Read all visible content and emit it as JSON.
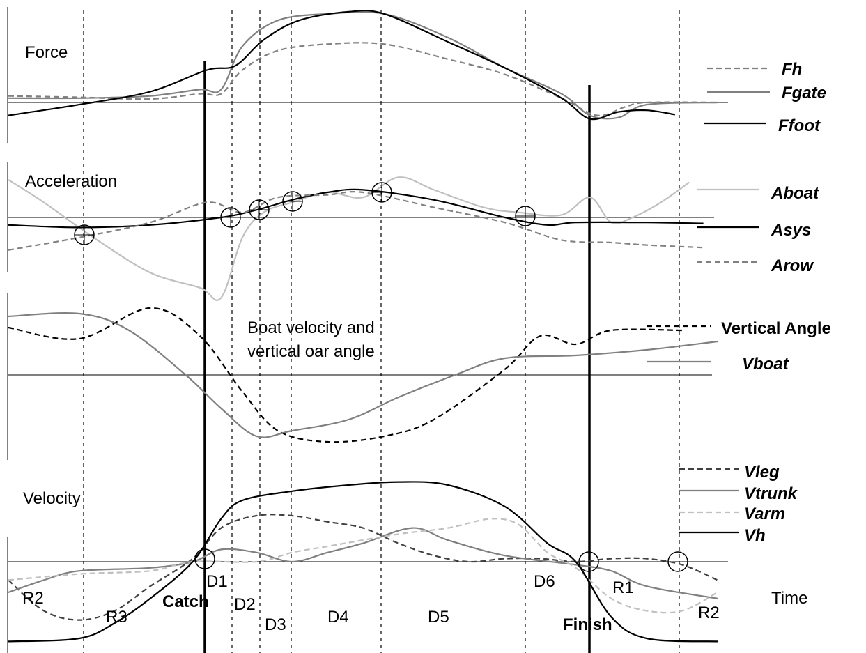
{
  "chart_data": {
    "type": "line",
    "panels": [
      {
        "id": "force",
        "title": "Force",
        "legend": [
          "Fh",
          "Fgate",
          "Ffoot"
        ],
        "series": [
          {
            "name": "Fh",
            "style": "dashed",
            "color": "#808080",
            "values": [
              [
                0,
                0.15
              ],
              [
                0.1,
                0.12
              ],
              [
                0.2,
                0.08
              ],
              [
                0.27,
                0.2
              ],
              [
                0.3,
                0.2
              ],
              [
                0.33,
                0.75
              ],
              [
                0.38,
                1.2
              ],
              [
                0.45,
                1.35
              ],
              [
                0.53,
                1.35
              ],
              [
                0.62,
                1.0
              ],
              [
                0.7,
                0.65
              ],
              [
                0.78,
                0.1
              ],
              [
                0.83,
                -0.3
              ],
              [
                0.87,
                -0.1
              ],
              [
                0.9,
                0.0
              ],
              [
                1.0,
                0.0
              ]
            ]
          },
          {
            "name": "Fgate",
            "style": "solid",
            "color": "#808080",
            "values": [
              [
                0,
                0.1
              ],
              [
                0.1,
                0.1
              ],
              [
                0.2,
                0.15
              ],
              [
                0.27,
                0.3
              ],
              [
                0.3,
                0.3
              ],
              [
                0.33,
                1.3
              ],
              [
                0.38,
                1.9
              ],
              [
                0.45,
                2.05
              ],
              [
                0.53,
                2.05
              ],
              [
                0.62,
                1.5
              ],
              [
                0.7,
                0.8
              ],
              [
                0.78,
                0.2
              ],
              [
                0.82,
                -0.3
              ],
              [
                0.86,
                -0.35
              ],
              [
                0.9,
                -0.05
              ],
              [
                1.0,
                0.0
              ]
            ]
          },
          {
            "name": "Ffoot",
            "style": "solid",
            "color": "#000000",
            "values": [
              [
                0,
                -0.3
              ],
              [
                0.1,
                -0.05
              ],
              [
                0.2,
                0.25
              ],
              [
                0.28,
                0.75
              ],
              [
                0.32,
                0.85
              ],
              [
                0.36,
                1.45
              ],
              [
                0.41,
                1.9
              ],
              [
                0.48,
                2.1
              ],
              [
                0.53,
                2.05
              ],
              [
                0.62,
                1.4
              ],
              [
                0.7,
                0.8
              ],
              [
                0.78,
                0.1
              ],
              [
                0.82,
                -0.38
              ],
              [
                0.86,
                -0.22
              ],
              [
                0.9,
                -0.18
              ],
              [
                0.94,
                -0.28
              ]
            ]
          }
        ]
      },
      {
        "id": "acceleration",
        "title": "Acceleration",
        "legend": [
          "Aboat",
          "Asys",
          "Arow"
        ],
        "series": [
          {
            "name": "Aboat",
            "style": "solid",
            "color": "#c0c0c0",
            "values": [
              [
                0,
                0.75
              ],
              [
                0.05,
                0.3
              ],
              [
                0.12,
                -0.4
              ],
              [
                0.2,
                -1.1
              ],
              [
                0.27,
                -1.4
              ],
              [
                0.3,
                -1.6
              ],
              [
                0.33,
                -0.4
              ],
              [
                0.36,
                0.1
              ],
              [
                0.4,
                0.3
              ],
              [
                0.45,
                0.5
              ],
              [
                0.5,
                0.4
              ],
              [
                0.55,
                0.8
              ],
              [
                0.6,
                0.55
              ],
              [
                0.67,
                0.2
              ],
              [
                0.72,
                0.1
              ],
              [
                0.78,
                0.05
              ],
              [
                0.82,
                0.4
              ],
              [
                0.85,
                -0.1
              ],
              [
                0.88,
                0.0
              ],
              [
                0.92,
                0.3
              ],
              [
                0.96,
                0.7
              ]
            ]
          },
          {
            "name": "Asys",
            "style": "solid",
            "color": "#000000",
            "values": [
              [
                0,
                -0.15
              ],
              [
                0.1,
                -0.2
              ],
              [
                0.2,
                -0.15
              ],
              [
                0.3,
                0.0
              ],
              [
                0.35,
                0.15
              ],
              [
                0.4,
                0.35
              ],
              [
                0.45,
                0.5
              ],
              [
                0.5,
                0.55
              ],
              [
                0.6,
                0.35
              ],
              [
                0.7,
                0.0
              ],
              [
                0.76,
                -0.15
              ],
              [
                0.8,
                -0.1
              ],
              [
                0.9,
                -0.1
              ],
              [
                0.98,
                -0.12
              ]
            ]
          },
          {
            "name": "Arow",
            "style": "dashed",
            "color": "#808080",
            "values": [
              [
                0,
                -0.65
              ],
              [
                0.1,
                -0.4
              ],
              [
                0.2,
                -0.1
              ],
              [
                0.28,
                0.3
              ],
              [
                0.33,
                0.1
              ],
              [
                0.38,
                0.4
              ],
              [
                0.45,
                0.45
              ],
              [
                0.5,
                0.5
              ],
              [
                0.6,
                0.2
              ],
              [
                0.7,
                -0.1
              ],
              [
                0.78,
                -0.45
              ],
              [
                0.85,
                -0.5
              ],
              [
                0.9,
                -0.55
              ],
              [
                0.98,
                -0.6
              ]
            ]
          }
        ]
      },
      {
        "id": "boat-velocity",
        "title": "Boat velocity and vertical oar angle",
        "legend": [
          "Vertical Angle",
          "Vboat"
        ],
        "series": [
          {
            "name": "Vertical Angle",
            "style": "dashed",
            "color": "#000000",
            "values": [
              [
                0,
                0.85
              ],
              [
                0.1,
                0.65
              ],
              [
                0.2,
                1.2
              ],
              [
                0.27,
                0.7
              ],
              [
                0.33,
                -0.3
              ],
              [
                0.38,
                -1.0
              ],
              [
                0.45,
                -1.2
              ],
              [
                0.53,
                -1.1
              ],
              [
                0.6,
                -0.8
              ],
              [
                0.7,
                0.1
              ],
              [
                0.75,
                0.7
              ],
              [
                0.8,
                0.55
              ],
              [
                0.85,
                0.8
              ],
              [
                0.95,
                0.8
              ]
            ]
          },
          {
            "name": "Vboat",
            "style": "solid",
            "color": "#808080",
            "values": [
              [
                0,
                1.05
              ],
              [
                0.1,
                1.1
              ],
              [
                0.17,
                0.8
              ],
              [
                0.25,
                0.0
              ],
              [
                0.3,
                -0.6
              ],
              [
                0.35,
                -1.1
              ],
              [
                0.4,
                -1.0
              ],
              [
                0.48,
                -0.8
              ],
              [
                0.55,
                -0.4
              ],
              [
                0.63,
                0.0
              ],
              [
                0.7,
                0.3
              ],
              [
                0.8,
                0.35
              ],
              [
                0.9,
                0.45
              ],
              [
                1.0,
                0.6
              ]
            ]
          }
        ]
      },
      {
        "id": "velocity",
        "title": "Velocity",
        "legend": [
          "Vleg",
          "Vtrunk",
          "Varm",
          "Vh"
        ],
        "series": [
          {
            "name": "Vleg",
            "style": "dashed",
            "color": "#404040",
            "values": [
              [
                0,
                -0.3
              ],
              [
                0.05,
                -0.8
              ],
              [
                0.1,
                -0.95
              ],
              [
                0.15,
                -0.8
              ],
              [
                0.2,
                -0.4
              ],
              [
                0.26,
                0.05
              ],
              [
                0.3,
                0.55
              ],
              [
                0.35,
                0.75
              ],
              [
                0.4,
                0.75
              ],
              [
                0.45,
                0.65
              ],
              [
                0.5,
                0.55
              ],
              [
                0.55,
                0.3
              ],
              [
                0.6,
                0.1
              ],
              [
                0.65,
                0.0
              ],
              [
                0.7,
                0.05
              ],
              [
                0.75,
                0.05
              ],
              [
                0.8,
                0.0
              ],
              [
                0.85,
                0.05
              ],
              [
                0.9,
                0.05
              ],
              [
                0.95,
                -0.05
              ],
              [
                1.0,
                -0.3
              ]
            ]
          },
          {
            "name": "Vtrunk",
            "style": "solid",
            "color": "#808080",
            "values": [
              [
                0,
                -0.5
              ],
              [
                0.05,
                -0.3
              ],
              [
                0.1,
                -0.15
              ],
              [
                0.2,
                -0.1
              ],
              [
                0.26,
                0.0
              ],
              [
                0.3,
                0.2
              ],
              [
                0.35,
                0.15
              ],
              [
                0.4,
                0.0
              ],
              [
                0.45,
                0.15
              ],
              [
                0.5,
                0.3
              ],
              [
                0.57,
                0.55
              ],
              [
                0.62,
                0.35
              ],
              [
                0.7,
                0.1
              ],
              [
                0.8,
                -0.05
              ],
              [
                0.85,
                -0.15
              ],
              [
                0.9,
                -0.4
              ],
              [
                1.0,
                -0.6
              ]
            ]
          },
          {
            "name": "Varm",
            "style": "dashed",
            "color": "#c0c0c0",
            "values": [
              [
                0,
                -0.3
              ],
              [
                0.1,
                -0.2
              ],
              [
                0.2,
                -0.15
              ],
              [
                0.26,
                0.0
              ],
              [
                0.35,
                0.0
              ],
              [
                0.4,
                0.15
              ],
              [
                0.45,
                0.25
              ],
              [
                0.55,
                0.45
              ],
              [
                0.62,
                0.55
              ],
              [
                0.68,
                0.7
              ],
              [
                0.72,
                0.6
              ],
              [
                0.76,
                0.15
              ],
              [
                0.8,
                -0.1
              ],
              [
                0.85,
                -0.6
              ],
              [
                0.9,
                -0.8
              ],
              [
                0.95,
                -0.8
              ],
              [
                1.0,
                -0.5
              ]
            ]
          },
          {
            "name": "Vh",
            "style": "solid",
            "color": "#000000",
            "values": [
              [
                0,
                -1.3
              ],
              [
                0.1,
                -1.25
              ],
              [
                0.15,
                -1.0
              ],
              [
                0.2,
                -0.6
              ],
              [
                0.26,
                0.0
              ],
              [
                0.3,
                0.7
              ],
              [
                0.33,
                1.0
              ],
              [
                0.4,
                1.15
              ],
              [
                0.48,
                1.25
              ],
              [
                0.55,
                1.3
              ],
              [
                0.62,
                1.25
              ],
              [
                0.7,
                0.9
              ],
              [
                0.76,
                0.3
              ],
              [
                0.8,
                0.0
              ],
              [
                0.85,
                -0.9
              ],
              [
                0.9,
                -1.25
              ],
              [
                1.0,
                -1.3
              ]
            ]
          }
        ]
      }
    ],
    "phase_labels": [
      "R2",
      "R3",
      "Catch",
      "D1",
      "D2",
      "D3",
      "D4",
      "D5",
      "D6",
      "Finish",
      "R1",
      "R2"
    ],
    "xlabel": "Time",
    "grid": false
  }
}
